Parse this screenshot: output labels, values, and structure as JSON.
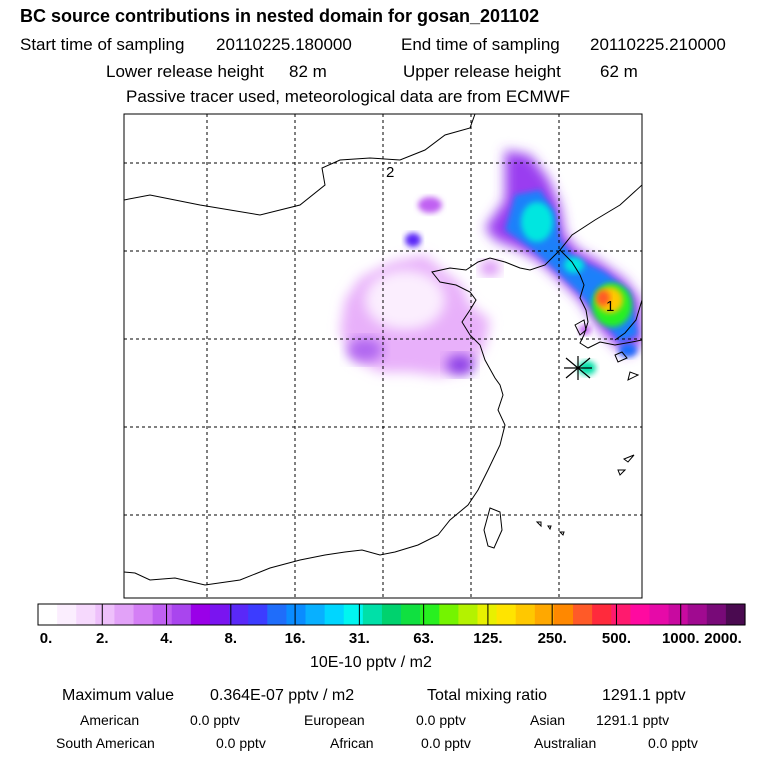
{
  "title": "BC  source contributions in nested domain for gosan_201102",
  "sampling": {
    "start_label": "Start time of sampling",
    "start_value": "20110225.180000",
    "end_label": "End time of sampling",
    "end_value": "20110225.210000"
  },
  "release": {
    "lower_label": "Lower release height",
    "lower_value": "82 m",
    "upper_label": "Upper release height",
    "upper_value": "62 m"
  },
  "note": "Passive tracer used, meteorological data are from ECMWF",
  "map": {
    "markers": [
      {
        "label": "2"
      },
      {
        "label": "1"
      }
    ],
    "receptor": "gosan-receptor-star"
  },
  "colorbar": {
    "colors": [
      "#ffffff",
      "#fbeefe",
      "#f6d9fd",
      "#eec0fb",
      "#e2a2f8",
      "#d47ff5",
      "#c060f2",
      "#a945ee",
      "#9a00e8",
      "#7a14f0",
      "#5a28f8",
      "#3c3cff",
      "#1f6dfa",
      "#0a8cff",
      "#08b0ff",
      "#00d6ff",
      "#00f6f0",
      "#00e0a8",
      "#00d26e",
      "#10e040",
      "#28f020",
      "#74f400",
      "#b4f200",
      "#e8f000",
      "#ffe400",
      "#ffc800",
      "#ffa800",
      "#ff8800",
      "#ff5a28",
      "#ff2a3c",
      "#ff1a6e",
      "#ff0aa0",
      "#e60aa8",
      "#c80aa0",
      "#a00a90",
      "#780a78",
      "#4a0a50"
    ],
    "ticks": [
      "0.",
      "2.",
      "4.",
      "8.",
      "16.",
      "31.",
      "63.",
      "125.",
      "250.",
      "500.",
      "1000.",
      "2000."
    ],
    "unit": "10E-10 pptv / m2"
  },
  "summary": {
    "max_label": "Maximum value",
    "max_value": "0.364E-07 pptv / m2",
    "total_label": "Total mixing ratio",
    "total_value": "1291.1 pptv"
  },
  "regions": [
    {
      "name": "American",
      "value": "0.0 pptv"
    },
    {
      "name": "European",
      "value": "0.0 pptv"
    },
    {
      "name": "Asian",
      "value": "1291.1 pptv"
    },
    {
      "name": "South American",
      "value": "0.0 pptv"
    },
    {
      "name": "African",
      "value": "0.0 pptv"
    },
    {
      "name": "Australian",
      "value": "0.0 pptv"
    }
  ]
}
